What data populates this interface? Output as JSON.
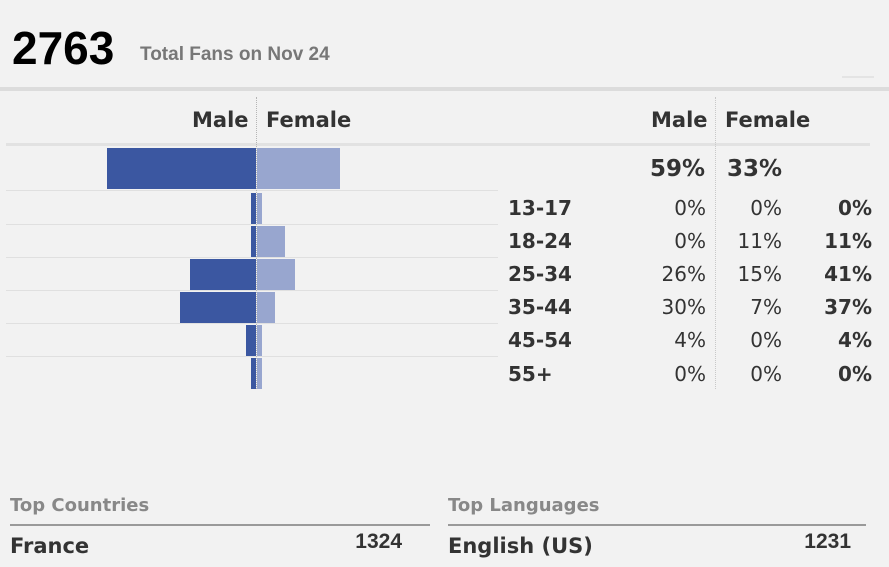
{
  "summary": {
    "total_fans": "2763",
    "label": "Total Fans on Nov 24"
  },
  "bars_header": {
    "male": "Male",
    "female": "Female"
  },
  "table_header": {
    "male": "Male",
    "female": "Female"
  },
  "totals": {
    "male": "59%",
    "female": "33%"
  },
  "rows": [
    {
      "age": "13-17",
      "male": "0%",
      "female": "0%",
      "total": "0%"
    },
    {
      "age": "18-24",
      "male": "0%",
      "female": "11%",
      "total": "11%"
    },
    {
      "age": "25-34",
      "male": "26%",
      "female": "15%",
      "total": "41%"
    },
    {
      "age": "35-44",
      "male": "30%",
      "female": "7%",
      "total": "37%"
    },
    {
      "age": "45-54",
      "male": "4%",
      "female": "0%",
      "total": "4%"
    },
    {
      "age": "55+",
      "male": "0%",
      "female": "0%",
      "total": "0%"
    }
  ],
  "bar_values": {
    "total": {
      "male": 59,
      "female": 33
    },
    "rows": [
      {
        "male": 0,
        "female": 0
      },
      {
        "male": 0,
        "female": 11
      },
      {
        "male": 26,
        "female": 15
      },
      {
        "male": 30,
        "female": 7
      },
      {
        "male": 4,
        "female": 0
      },
      {
        "male": 0,
        "female": 0
      }
    ]
  },
  "colors": {
    "male": "#3b57a1",
    "female": "#98a6cf"
  },
  "top_countries": {
    "title": "Top Countries",
    "items": [
      {
        "name": "France",
        "value": "1324"
      }
    ]
  },
  "top_languages": {
    "title": "Top Languages",
    "items": [
      {
        "name": "English (US)",
        "value": "1231"
      }
    ]
  }
}
